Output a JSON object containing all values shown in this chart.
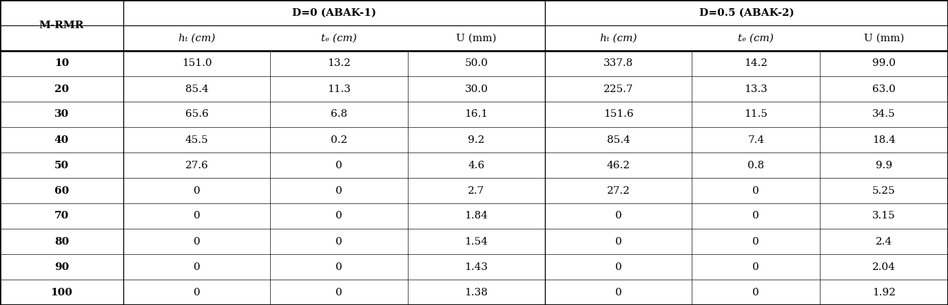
{
  "col_header_row1": [
    "M-RMR",
    "D=0 (ABAK-1)",
    "",
    "",
    "D=0.5 (ABAK-2)",
    "",
    ""
  ],
  "col_header_row2": [
    "",
    "hₜ (cm)",
    "tₑ (cm)",
    "U (mm)",
    "hₜ (cm)",
    "tₑ (cm)",
    "U (mm)"
  ],
  "rows": [
    [
      "10",
      "151.0",
      "13.2",
      "50.0",
      "337.8",
      "14.2",
      "99.0"
    ],
    [
      "20",
      "85.4",
      "11.3",
      "30.0",
      "225.7",
      "13.3",
      "63.0"
    ],
    [
      "30",
      "65.6",
      "6.8",
      "16.1",
      "151.6",
      "11.5",
      "34.5"
    ],
    [
      "40",
      "45.5",
      "0.2",
      "9.2",
      "85.4",
      "7.4",
      "18.4"
    ],
    [
      "50",
      "27.6",
      "0",
      "4.6",
      "46.2",
      "0.8",
      "9.9"
    ],
    [
      "60",
      "0",
      "0",
      "2.7",
      "27.2",
      "0",
      "5.25"
    ],
    [
      "70",
      "0",
      "0",
      "1.84",
      "0",
      "0",
      "3.15"
    ],
    [
      "80",
      "0",
      "0",
      "1.54",
      "0",
      "0",
      "2.4"
    ],
    [
      "90",
      "0",
      "0",
      "1.43",
      "0",
      "0",
      "2.04"
    ],
    [
      "100",
      "0",
      "0",
      "1.38",
      "0",
      "0",
      "1.92"
    ]
  ],
  "background_color": "#ffffff",
  "header_bg": "#ffffff",
  "line_color": "#000000",
  "text_color": "#000000",
  "bold_col0": true
}
